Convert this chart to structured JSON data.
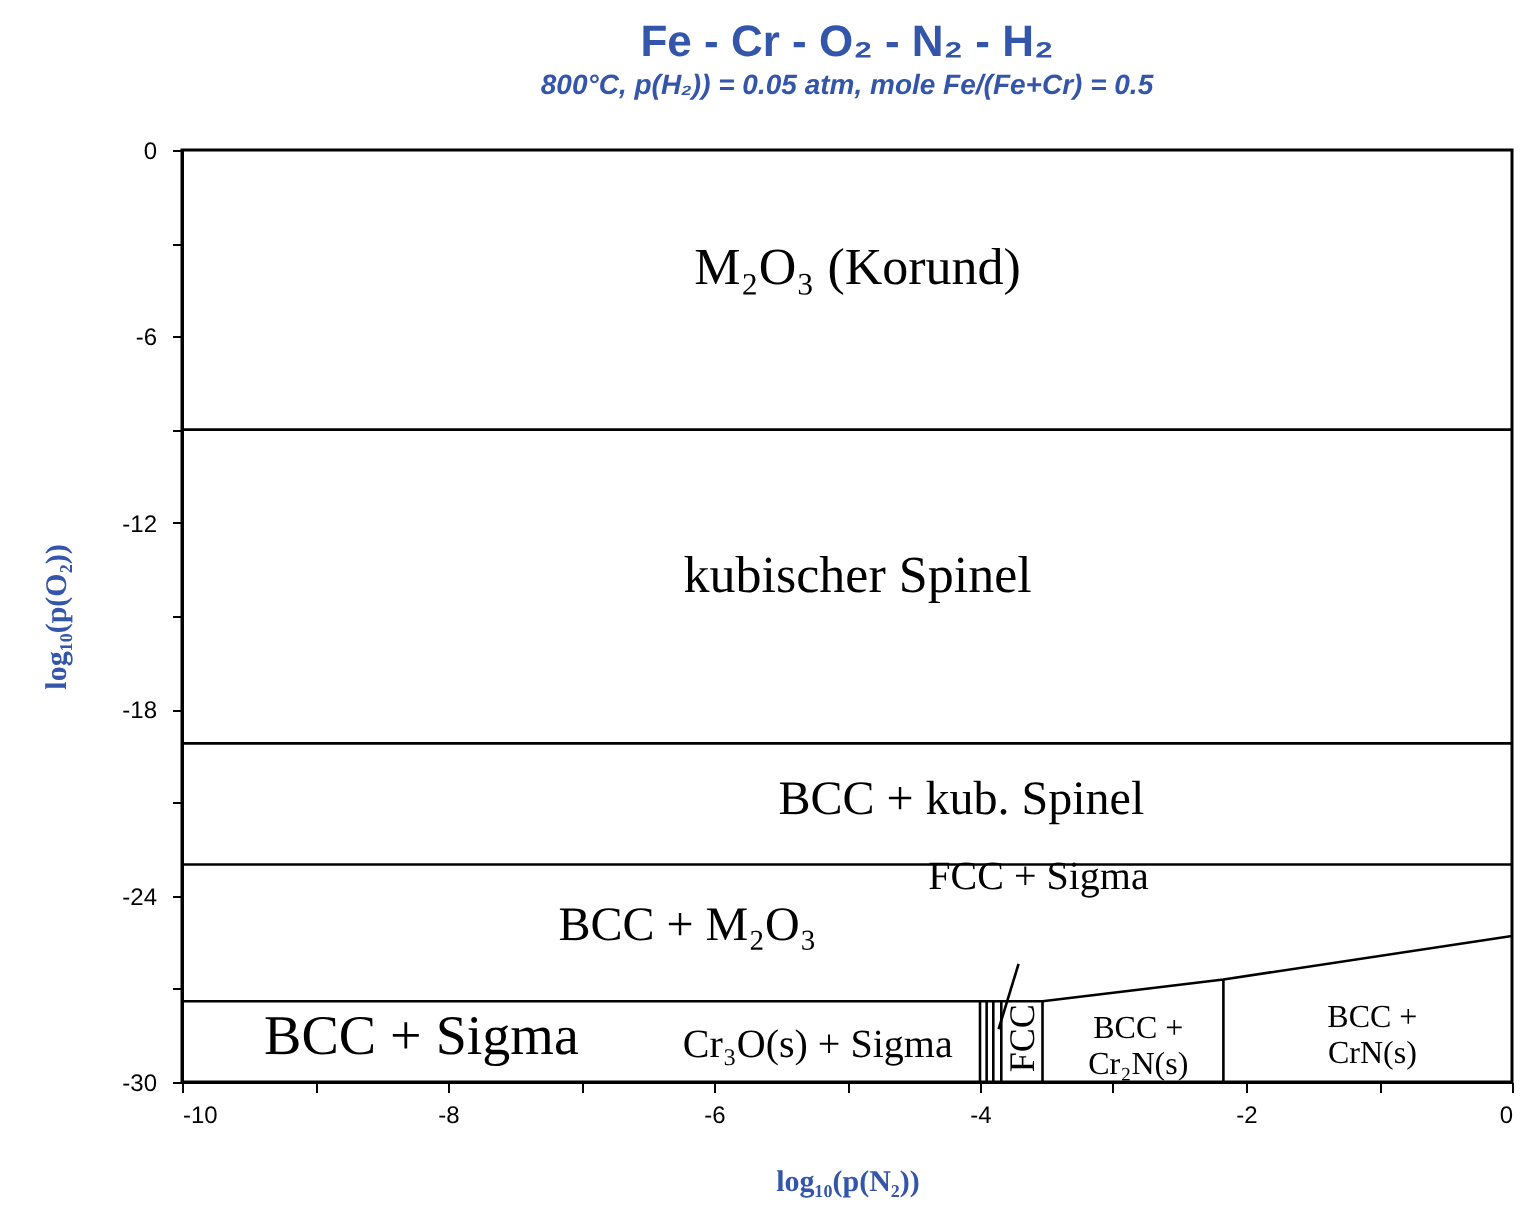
{
  "chart_data": {
    "type": "line",
    "title": "Fe - Cr - O₂ - N₂ - H₂",
    "subtitle": "800°C, p(H₂)) = 0.05 atm, mole Fe/(Fe+Cr) = 0.5",
    "xlabel": "log₁₀(p(N₂))",
    "ylabel": "log₁₀(p(O₂))",
    "xlim": [
      -10,
      0
    ],
    "ylim": [
      -30,
      0
    ],
    "xticks": [
      -10,
      {
        "value": -9,
        "label": null
      },
      -8,
      {
        "value": -7,
        "label": null
      },
      -6,
      {
        "value": -5,
        "label": null
      },
      -4,
      {
        "value": -3,
        "label": null
      },
      -2,
      {
        "value": -1,
        "label": null
      },
      0
    ],
    "yticks": [
      -30,
      {
        "value": -27,
        "label": null
      },
      -24,
      {
        "value": -21,
        "label": null
      },
      -18,
      {
        "value": -15,
        "label": null
      },
      -12,
      {
        "value": -9,
        "label": null
      },
      -6,
      {
        "value": -3,
        "label": null
      },
      0
    ],
    "grid": false,
    "marker": "none",
    "line_style": "solid",
    "series": [
      {
        "color": "#000000",
        "x": [
          -10,
          0
        ],
        "values": [
          -9.0,
          -9.0
        ]
      },
      {
        "color": "#000000",
        "x": [
          -10,
          0
        ],
        "values": [
          -19.1,
          -19.1
        ]
      },
      {
        "color": "#000000",
        "x": [
          -10,
          0
        ],
        "values": [
          -23.0,
          -23.0
        ]
      },
      {
        "color": "#000000",
        "x": [
          -10,
          -3.53,
          -2.17,
          0
        ],
        "values": [
          -27.4,
          -27.4,
          -26.7,
          -25.3
        ]
      },
      {
        "color": "#000000",
        "x": [
          -3.53,
          -3.53
        ],
        "values": [
          -30,
          -27.4
        ]
      },
      {
        "color": "#000000",
        "x": [
          -2.17,
          -2.17
        ],
        "values": [
          -30,
          -26.7
        ]
      },
      {
        "color": "#000000",
        "x": [
          -4.0,
          -4.0
        ],
        "values": [
          -30,
          -27.4
        ]
      },
      {
        "color": "#000000",
        "x": [
          -3.95,
          -3.95
        ],
        "values": [
          -30,
          -27.4
        ]
      },
      {
        "color": "#000000",
        "x": [
          -3.9,
          -3.9
        ],
        "values": [
          -30,
          -27.4
        ]
      },
      {
        "color": "#000000",
        "x": [
          -3.84,
          -3.84
        ],
        "values": [
          -30,
          -27.4
        ]
      },
      {
        "color": "#000000",
        "x": [
          -3.71,
          -3.86
        ],
        "values": [
          -26.2,
          -28.3
        ]
      }
    ],
    "annotations": [
      "M₂O₃ (Korund)",
      "kubischer Spinel",
      "BCC + kub. Spinel",
      "BCC + M₂O₃",
      "FCC + Sigma",
      "BCC + Sigma",
      "Cr₃O(s) + Sigma",
      "FCC",
      "BCC +\nCr₂N(s)",
      "BCC +\nCrN(s)"
    ]
  }
}
